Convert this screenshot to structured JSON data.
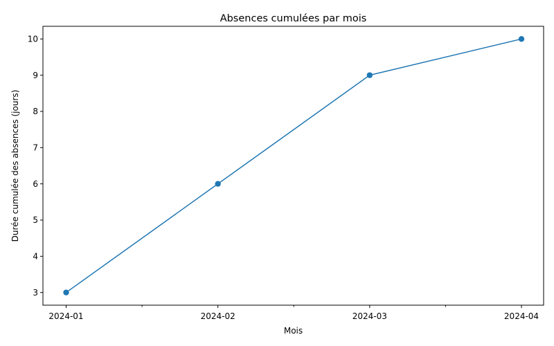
{
  "chart_data": {
    "type": "line",
    "title": "Absences cumulées par mois",
    "xlabel": "Mois",
    "ylabel": "Durée cumulée des absences (jours)",
    "categories": [
      "2024-01",
      "2024-02",
      "2024-03",
      "2024-04"
    ],
    "series": [
      {
        "values": [
          3,
          6,
          9,
          10
        ],
        "color": "#1f77b4",
        "marker": "circle"
      }
    ],
    "yticks": [
      3,
      4,
      5,
      6,
      7,
      8,
      9,
      10
    ],
    "ylim": [
      2.65,
      10.35
    ],
    "minor_xticks_between_categories": true,
    "grid": false,
    "legend": "none"
  }
}
